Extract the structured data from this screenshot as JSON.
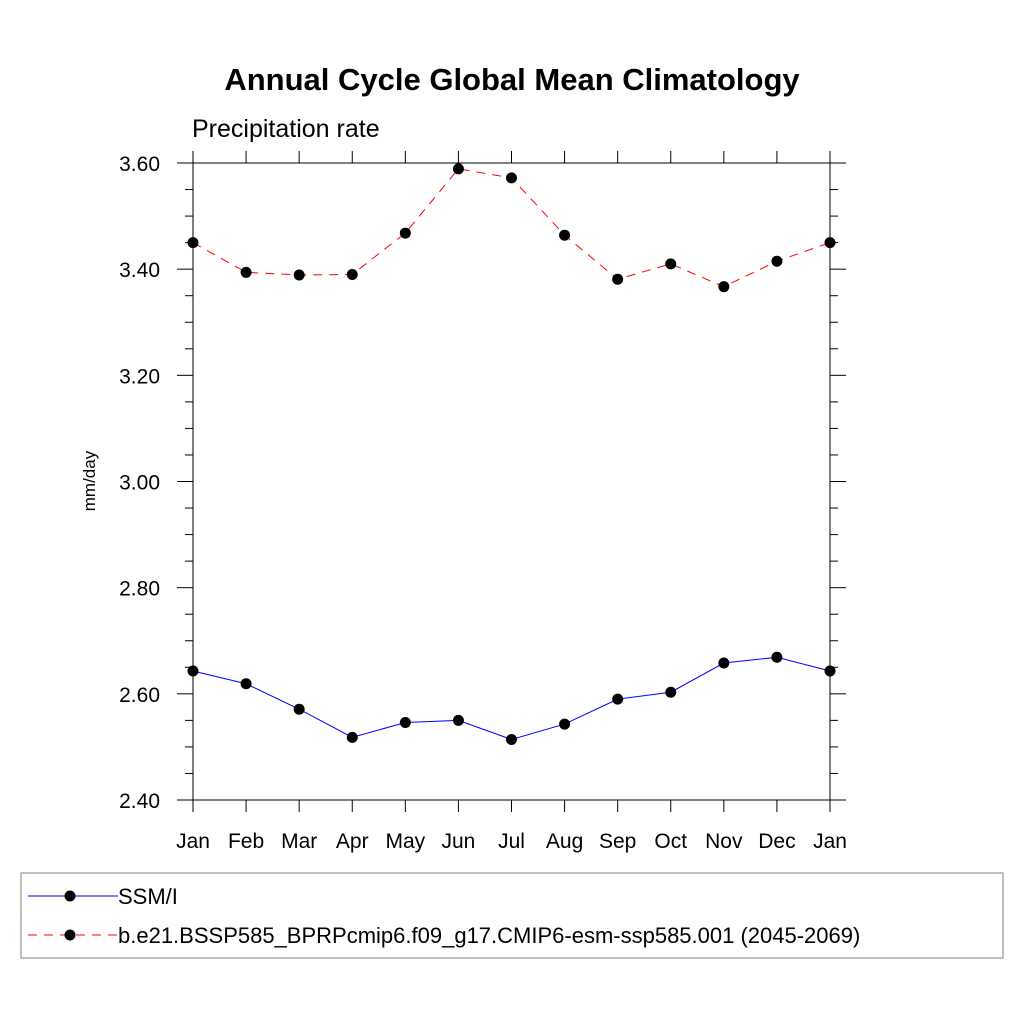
{
  "chart_data": {
    "type": "line",
    "title": "Annual Cycle Global Mean Climatology",
    "subtitle": "Precipitation rate",
    "ylabel": "mm/day",
    "xlabel": "",
    "categories": [
      "Jan",
      "Feb",
      "Mar",
      "Apr",
      "May",
      "Jun",
      "Jul",
      "Aug",
      "Sep",
      "Oct",
      "Nov",
      "Dec",
      "Jan"
    ],
    "ylim": [
      2.4,
      3.6
    ],
    "yticks": [
      "2.40",
      "2.60",
      "2.80",
      "3.00",
      "3.20",
      "3.40",
      "3.60"
    ],
    "series": [
      {
        "name": "SSM/I",
        "color": "#0000ff",
        "line_style": "solid",
        "values": [
          2.643,
          2.619,
          2.571,
          2.518,
          2.546,
          2.55,
          2.514,
          2.543,
          2.59,
          2.603,
          2.658,
          2.669,
          2.643
        ]
      },
      {
        "name": "b.e21.BSSP585_BPRPcmip6.f09_g17.CMIP6-esm-ssp585.001 (2045-2069)",
        "color": "#ff0000",
        "line_style": "dashed",
        "values": [
          3.45,
          3.394,
          3.389,
          3.39,
          3.468,
          3.589,
          3.572,
          3.464,
          3.381,
          3.41,
          3.367,
          3.415,
          3.45
        ]
      }
    ],
    "legend_position": "bottom",
    "grid": false
  }
}
